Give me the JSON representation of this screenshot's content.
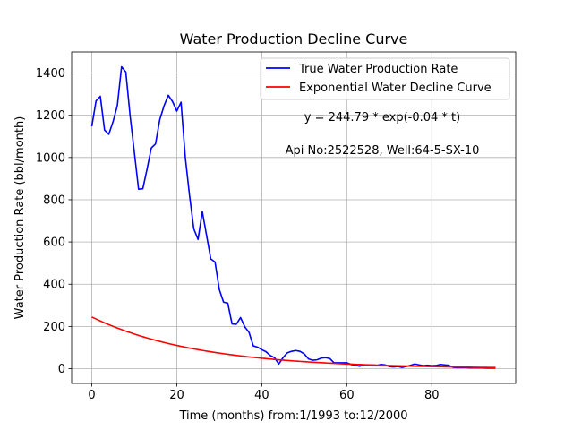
{
  "chart_data": {
    "type": "line",
    "title": "Water Production Decline Curve",
    "xlabel": "Time (months) from:1/1993 to:12/2000",
    "ylabel": "Water Production Rate (bbl/month)",
    "xlim": [
      -4.75,
      99.75
    ],
    "ylim": [
      -70,
      1500
    ],
    "xticks": [
      0,
      20,
      40,
      60,
      80
    ],
    "yticks": [
      0,
      200,
      400,
      600,
      800,
      1000,
      1200,
      1400
    ],
    "grid": true,
    "legend_position": "top-right",
    "annotations": {
      "equation": "y = 244.79 * exp(-0.04 * t)",
      "well": "Api No:2522528, Well:64-5-SX-10"
    },
    "series": [
      {
        "name": "True Water Production Rate",
        "color": "#0000ff",
        "x": [
          0,
          1,
          2,
          3,
          4,
          5,
          6,
          7,
          8,
          9,
          10,
          11,
          12,
          13,
          14,
          15,
          16,
          17,
          18,
          19,
          20,
          21,
          22,
          23,
          24,
          25,
          26,
          27,
          28,
          29,
          30,
          31,
          32,
          33,
          34,
          35,
          36,
          37,
          38,
          39,
          40,
          41,
          42,
          43,
          44,
          45,
          46,
          47,
          48,
          49,
          50,
          51,
          52,
          53,
          54,
          55,
          56,
          57,
          58,
          59,
          60,
          61,
          62,
          63,
          64,
          65,
          66,
          67,
          68,
          69,
          70,
          71,
          72,
          73,
          74,
          75,
          76,
          77,
          78,
          79,
          80,
          81,
          82,
          83,
          84,
          85,
          86,
          87,
          88,
          89,
          90,
          91,
          92,
          93,
          94,
          95
        ],
        "y": [
          1148,
          1268,
          1290,
          1130,
          1110,
          1170,
          1245,
          1430,
          1405,
          1200,
          1025,
          850,
          852,
          945,
          1045,
          1065,
          1180,
          1245,
          1295,
          1265,
          1220,
          1262,
          1000,
          820,
          662,
          612,
          744,
          632,
          520,
          505,
          375,
          315,
          310,
          212,
          210,
          242,
          198,
          172,
          108,
          102,
          90,
          80,
          62,
          52,
          22,
          52,
          75,
          82,
          86,
          82,
          70,
          46,
          40,
          42,
          50,
          52,
          48,
          28,
          28,
          28,
          28,
          20,
          16,
          12,
          18,
          17,
          18,
          15,
          20,
          18,
          10,
          8,
          10,
          6,
          10,
          16,
          22,
          18,
          14,
          16,
          14,
          15,
          20,
          18,
          16,
          6,
          5,
          5,
          5,
          4,
          4,
          4,
          4,
          3,
          3,
          3
        ]
      },
      {
        "name": "Exponential Water Decline Curve",
        "color": "#ff0000",
        "fit": {
          "a": 244.79,
          "b": -0.04
        },
        "x_range": [
          0,
          95
        ]
      }
    ]
  }
}
